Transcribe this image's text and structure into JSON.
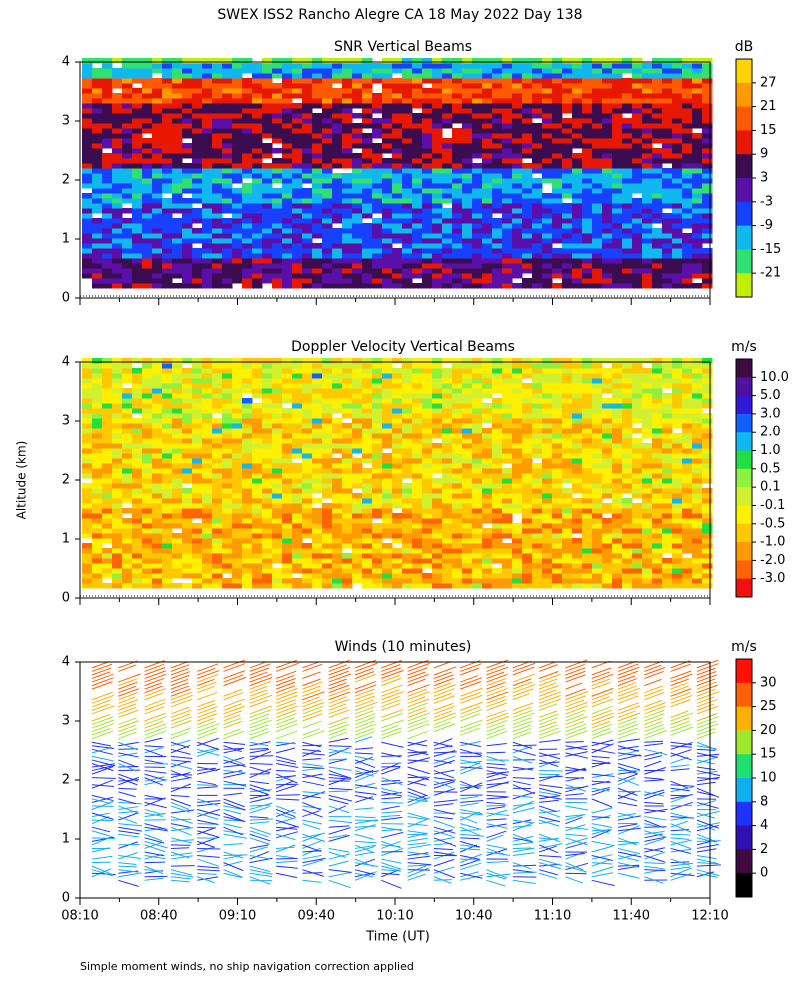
{
  "title": "SWEX ISS2 Rancho Alegre CA  18 May 2022 Day 138",
  "y_axis_label": "Altitude (km)",
  "x_axis_label": "Time (UT)",
  "footnote": "Simple moment winds, no ship navigation correction applied",
  "chart_data": [
    {
      "type": "heatmap",
      "title": "SNR Vertical Beams",
      "colorbar_unit": "dB",
      "colorbar_ticks": [
        27,
        21,
        15,
        9,
        3,
        -3,
        -9,
        -15,
        -21
      ],
      "colorbar_colors": [
        "#ffd200",
        "#ff9a00",
        "#ff5a00",
        "#e81800",
        "#3c0c50",
        "#5a10a8",
        "#1840ff",
        "#10b8f0",
        "#30e070",
        "#c0f000"
      ],
      "ylim": [
        0,
        4
      ],
      "yticks": [
        0,
        1,
        2,
        3,
        4
      ]
    },
    {
      "type": "heatmap",
      "title": "Doppler Velocity Vertical Beams",
      "colorbar_unit": "m/s",
      "colorbar_ticks": [
        {
          "value": 10,
          "label": "10.0"
        },
        {
          "value": 5,
          "label": "5.0"
        },
        {
          "value": 3,
          "label": "3.0"
        },
        {
          "value": 2,
          "label": "2.0"
        },
        {
          "value": 1,
          "label": "1.0"
        },
        0.5,
        0.1,
        -0.1,
        -0.5,
        {
          "value": -1,
          "label": "-1.0"
        },
        {
          "value": -2,
          "label": "-2.0"
        },
        {
          "value": -3,
          "label": "-3.0"
        }
      ],
      "colorbar_colors": [
        "#3c0c40",
        "#5010a0",
        "#3018d8",
        "#1060ff",
        "#10b8f0",
        "#20e040",
        "#90f040",
        "#d0f030",
        "#fff000",
        "#ffc800",
        "#ff9a00",
        "#ff6400",
        "#f01010"
      ],
      "ylim": [
        0,
        4
      ],
      "yticks": [
        0,
        1,
        2,
        3,
        4
      ]
    },
    {
      "type": "wind-barbs",
      "title": "Winds (10 minutes)",
      "colorbar_unit": "m/s",
      "colorbar_ticks": [
        30,
        25,
        20,
        15,
        10,
        8,
        4,
        2,
        0
      ],
      "colorbar_colors": [
        "#ff1000",
        "#ff6000",
        "#ffb000",
        "#a0e830",
        "#20e070",
        "#10b0f0",
        "#2030ff",
        "#3010b0",
        "#400a40",
        "#000000"
      ],
      "ylim": [
        0,
        4
      ],
      "yticks": [
        0,
        1,
        2,
        3,
        4
      ],
      "xticks": [
        "08:10",
        "08:40",
        "09:10",
        "09:40",
        "10:10",
        "10:40",
        "11:10",
        "11:40",
        "12:10"
      ]
    }
  ]
}
